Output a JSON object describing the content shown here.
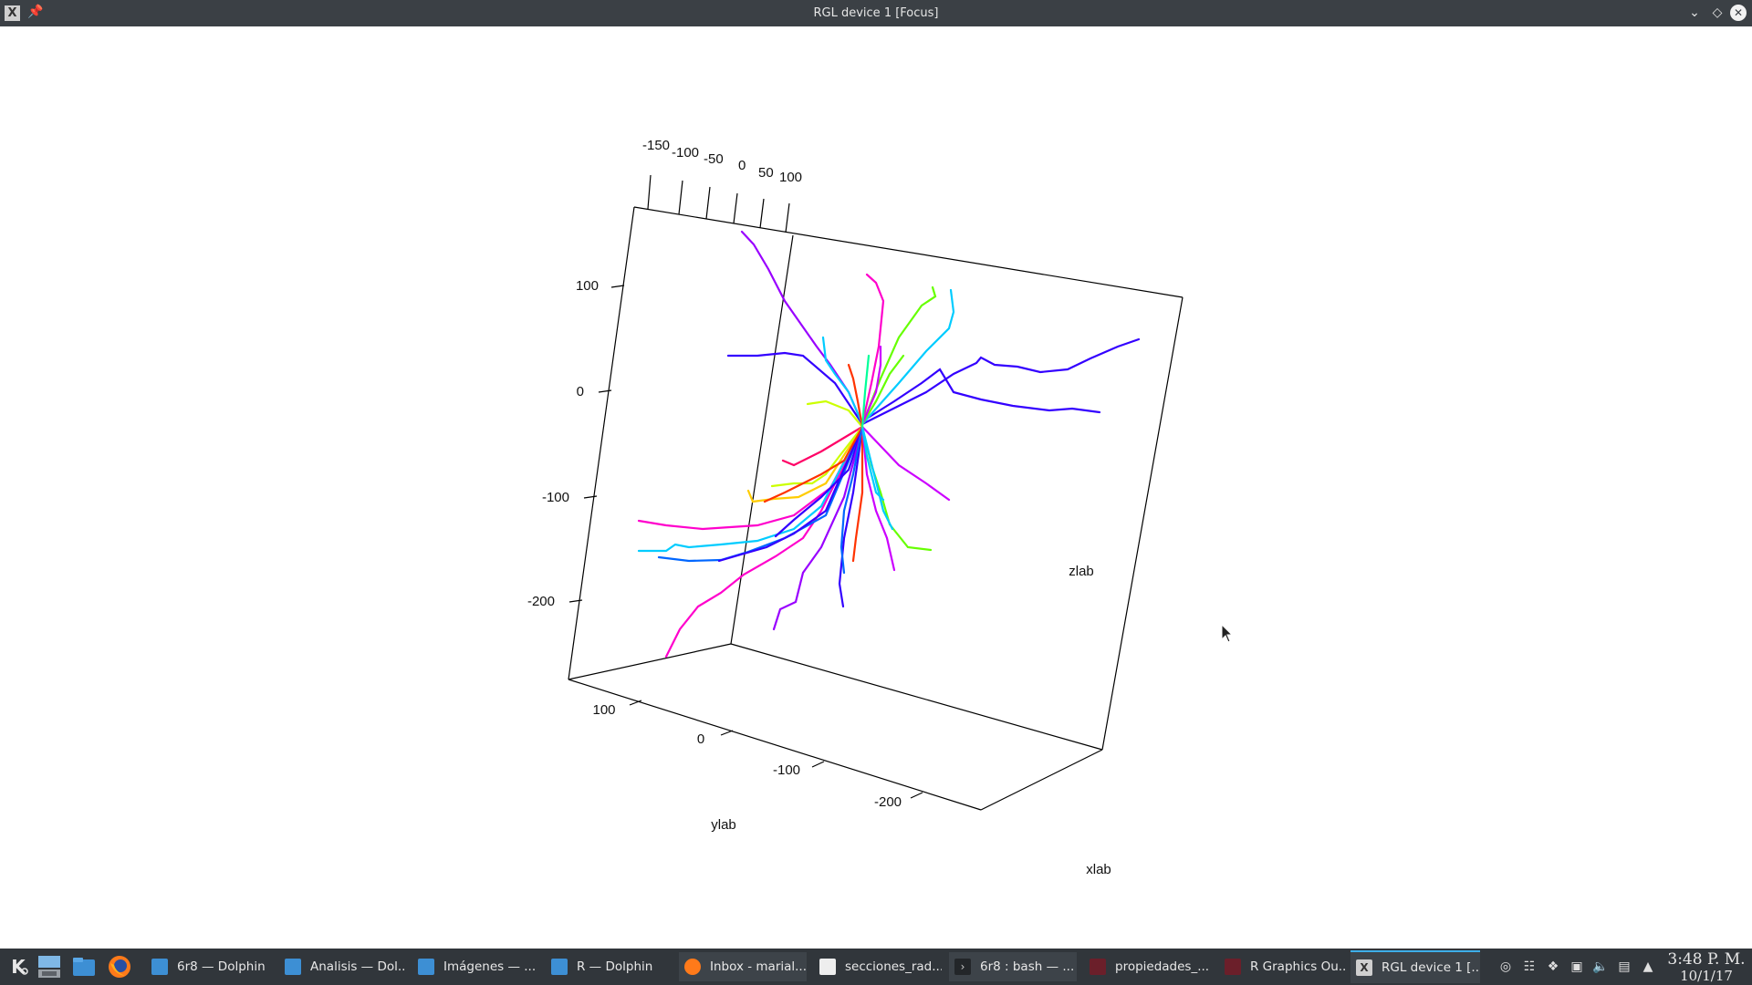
{
  "window": {
    "title": "RGL device 1 [Focus]",
    "app_icon_glyph": "X"
  },
  "plot": {
    "axis_labels": {
      "x": "xlab",
      "y": "ylab",
      "z": "zlab"
    },
    "top_ticks": [
      "-150",
      "-100",
      "-50",
      "0",
      "50",
      "100"
    ],
    "left_ticks": [
      "100",
      "0",
      "-100",
      "-200"
    ],
    "bottom_ticks": [
      "100",
      "0",
      "-100",
      "-200"
    ],
    "line_colors": [
      "#ff00cc",
      "#3300ff",
      "#00ccff",
      "#66ff00",
      "#ff3300",
      "#ccff00",
      "#9900ff",
      "#0066ff",
      "#ff0066",
      "#00ff99",
      "#ffcc00",
      "#cc00ff"
    ]
  },
  "taskbar": {
    "tasks": [
      {
        "label": "6r8 — Dolphin",
        "icon": "folder-icon"
      },
      {
        "label": "Analisis — Dol...",
        "icon": "folder-icon"
      },
      {
        "label": "Imágenes — ...",
        "icon": "folder-icon"
      },
      {
        "label": "R — Dolphin",
        "icon": "folder-icon"
      },
      {
        "label": "Inbox - marial...",
        "icon": "firefox-icon"
      },
      {
        "label": "secciones_rad...",
        "icon": "document-icon"
      },
      {
        "label": "6r8 : bash — ...",
        "icon": "terminal-icon"
      },
      {
        "label": "propiedades_...",
        "icon": "r-graphics-icon"
      },
      {
        "label": "R Graphics Ou...",
        "icon": "r-graphics-icon"
      },
      {
        "label": "RGL device 1 [...",
        "icon": "x-window-icon"
      }
    ],
    "clock": {
      "time": "3:48 P. M.",
      "date": "10/1/17"
    }
  }
}
